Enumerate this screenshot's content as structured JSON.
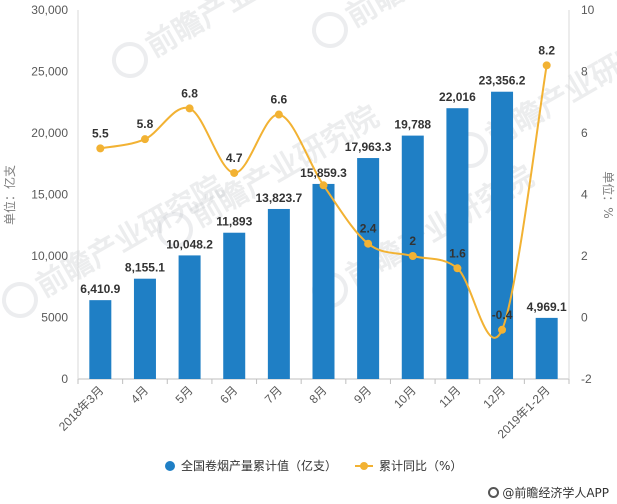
{
  "watermark": "前瞻产业研究院",
  "source": "@前瞻经济学人APP",
  "chart_data": {
    "type": "bar+line",
    "categories": [
      "2018年3月",
      "4月",
      "5月",
      "6月",
      "7月",
      "8月",
      "9月",
      "10月",
      "11月",
      "12月",
      "2019年1-2月"
    ],
    "series": [
      {
        "name": "全国卷烟产量累计值（亿支）",
        "type": "bar",
        "axis": "left",
        "color": "#1f7fc5",
        "values": [
          6410.9,
          8155.1,
          10048.2,
          11893,
          13823.7,
          15859.3,
          17963.3,
          19788,
          22016,
          23356.2,
          4969.1
        ],
        "labels": [
          "6,410.9",
          "8,155.1",
          "10,048.2",
          "11,893",
          "13,823.7",
          "15,859.3",
          "17,963.3",
          "19,788",
          "22,016",
          "23,356.2",
          "4,969.1"
        ]
      },
      {
        "name": "累计同比（%）",
        "type": "line",
        "axis": "right",
        "color": "#f2b233",
        "values": [
          5.5,
          5.8,
          6.8,
          4.7,
          6.6,
          4.3,
          2.4,
          2,
          1.6,
          -0.4,
          8.2
        ],
        "labels": [
          "5.5",
          "5.8",
          "6.8",
          "4.7",
          "6.6",
          "",
          "2.4",
          "2",
          "1.6",
          "-0.4",
          "8.2"
        ]
      }
    ],
    "y_left": {
      "label": "单位：亿支",
      "ylim": [
        0,
        30000
      ],
      "ticks": [
        0,
        5000,
        10000,
        15000,
        20000,
        25000,
        30000
      ],
      "tick_labels": [
        "0",
        "5000",
        "10,000",
        "15,000",
        "20,000",
        "25,000",
        "30,000"
      ]
    },
    "y_right": {
      "label": "单位：%",
      "ylim": [
        -2,
        10
      ],
      "ticks": [
        -2,
        0,
        2,
        4,
        6,
        8,
        10
      ],
      "tick_labels": [
        "-2",
        "0",
        "2",
        "4",
        "6",
        "8",
        "10"
      ]
    },
    "grid": false,
    "legend": "bottom-center"
  }
}
